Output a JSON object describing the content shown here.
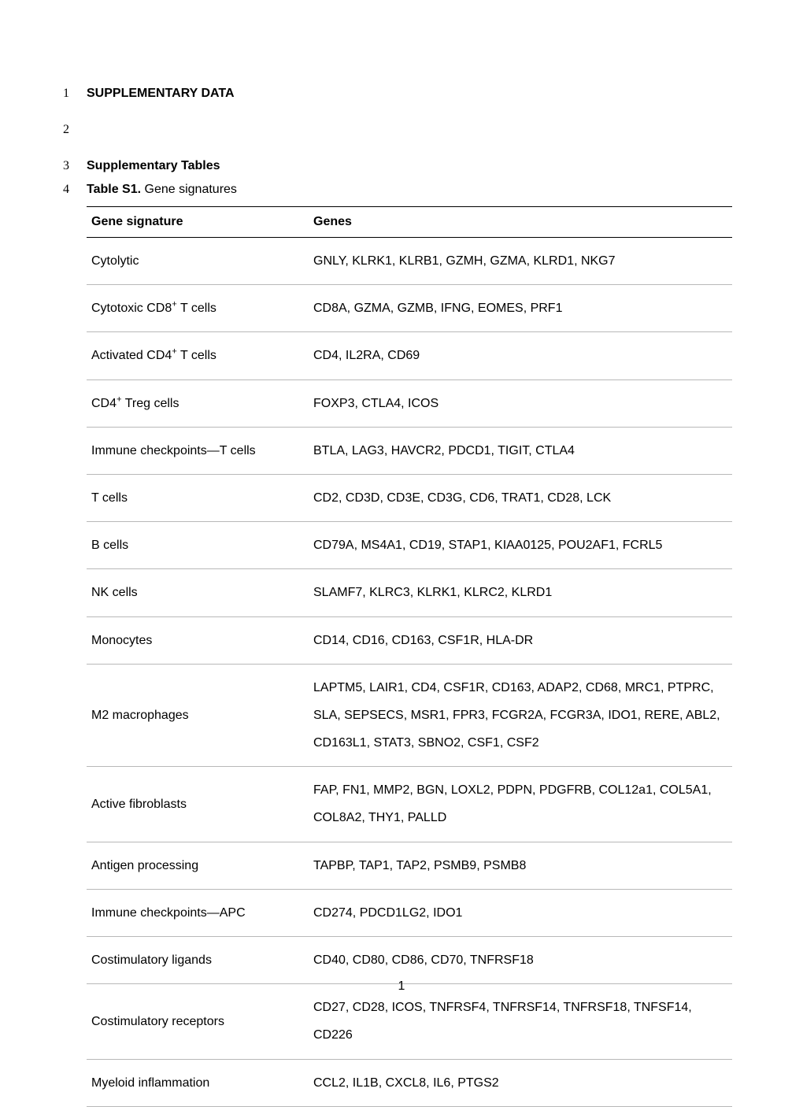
{
  "lines": [
    {
      "n": "1",
      "text": "SUPPLEMENTARY DATA",
      "bold": true
    },
    {
      "n": "2",
      "text": ""
    },
    {
      "n": "3",
      "text": "Supplementary Tables",
      "bold": true
    },
    {
      "n": "4",
      "prefix_bold": "Table S1.",
      "suffix": " Gene signatures"
    }
  ],
  "table": {
    "headers": [
      "Gene signature",
      "Genes"
    ],
    "rows": [
      {
        "sig": "Cytolytic",
        "genes": "GNLY, KLRK1, KLRB1, GZMH, GZMA, KLRD1, NKG7"
      },
      {
        "sig_html": "Cytotoxic CD8<sup>+</sup> T cells",
        "genes": "CD8A, GZMA, GZMB, IFNG, EOMES, PRF1"
      },
      {
        "sig_html": "Activated CD4<sup>+</sup> T cells",
        "genes": "CD4, IL2RA, CD69"
      },
      {
        "sig_html": "CD4<sup>+</sup> Treg cells",
        "genes": "FOXP3, CTLA4, ICOS"
      },
      {
        "sig": "Immune checkpoints—T cells",
        "genes": "BTLA, LAG3, HAVCR2, PDCD1, TIGIT, CTLA4"
      },
      {
        "sig": "T cells",
        "genes": "CD2, CD3D, CD3E, CD3G, CD6, TRAT1, CD28, LCK"
      },
      {
        "sig": "B cells",
        "genes": "CD79A, MS4A1, CD19, STAP1, KIAA0125, POU2AF1, FCRL5"
      },
      {
        "sig": "NK cells",
        "genes": "SLAMF7, KLRC3, KLRK1, KLRC2, KLRD1"
      },
      {
        "sig": "Monocytes",
        "genes": "CD14, CD16, CD163, CSF1R, HLA-DR"
      },
      {
        "sig": "M2 macrophages",
        "genes": "LAPTM5, LAIR1, CD4, CSF1R, CD163, ADAP2, CD68, MRC1, PTPRC, SLA, SEPSECS, MSR1, FPR3, FCGR2A, FCGR3A, IDO1, RERE, ABL2, CD163L1, STAT3, SBNO2, CSF1, CSF2"
      },
      {
        "sig": "Active fibroblasts",
        "genes": "FAP, FN1, MMP2, BGN, LOXL2, PDPN, PDGFRB, COL12a1, COL5A1, COL8A2, THY1, PALLD"
      },
      {
        "sig": "Antigen processing",
        "genes": "TAPBP, TAP1, TAP2, PSMB9, PSMB8"
      },
      {
        "sig": "Immune checkpoints—APC",
        "genes": "CD274, PDCD1LG2, IDO1"
      },
      {
        "sig": "Costimulatory ligands",
        "genes": "CD40, CD80, CD86, CD70, TNFRSF18"
      },
      {
        "sig": "Costimulatory receptors",
        "genes": "CD27, CD28, ICOS, TNFRSF4, TNFRSF14, TNFRSF18, TNFSF14, CD226"
      },
      {
        "sig": "Myeloid inflammation",
        "genes": "CCL2, IL1B, CXCL8, IL6, PTGS2"
      }
    ]
  },
  "page_number": "1"
}
